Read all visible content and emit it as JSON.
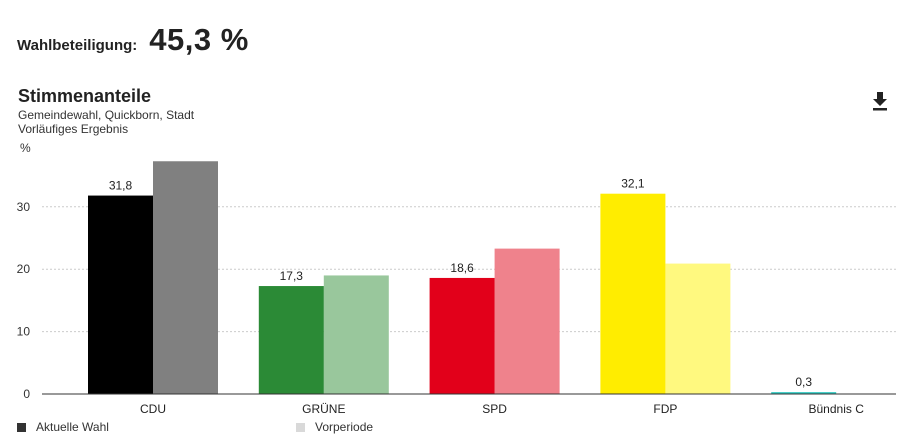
{
  "turnout": {
    "label": "Wahlbeteiligung:",
    "value": "45,3 %"
  },
  "title": "Stimmenanteile",
  "subtitle1": "Gemeindewahl, Quickborn, Stadt",
  "subtitle2": "Vorläufiges Ergebnis",
  "icons": {
    "download": "download-icon"
  },
  "legend": {
    "current": {
      "label": "Aktuelle Wahl",
      "color": "#333333"
    },
    "previous": {
      "label": "Vorperiode",
      "color": "#d9d9d9"
    }
  },
  "chart_data": {
    "type": "bar",
    "ylabel": "%",
    "ylim": [
      0,
      37.5
    ],
    "yticks": [
      0,
      10,
      20,
      30
    ],
    "grid": true,
    "legend_position": "bottom-left",
    "categories": [
      "CDU",
      "GRÜNE",
      "SPD",
      "FDP",
      "Bündnis C"
    ],
    "series": [
      {
        "name": "Aktuelle Wahl",
        "values": [
          31.8,
          17.3,
          18.6,
          32.1,
          0.3
        ],
        "labels": [
          "31,8",
          "17,3",
          "18,6",
          "32,1",
          "0,3"
        ],
        "colors": [
          "#000000",
          "#2b8a36",
          "#e2001a",
          "#ffed00",
          "#2ec8c0"
        ]
      },
      {
        "name": "Vorperiode",
        "values": [
          37.3,
          19.0,
          23.3,
          20.9,
          null
        ],
        "colors": [
          "#808080",
          "#99c79c",
          "#ef828c",
          "#fff97f",
          "#ffffff"
        ]
      }
    ]
  }
}
